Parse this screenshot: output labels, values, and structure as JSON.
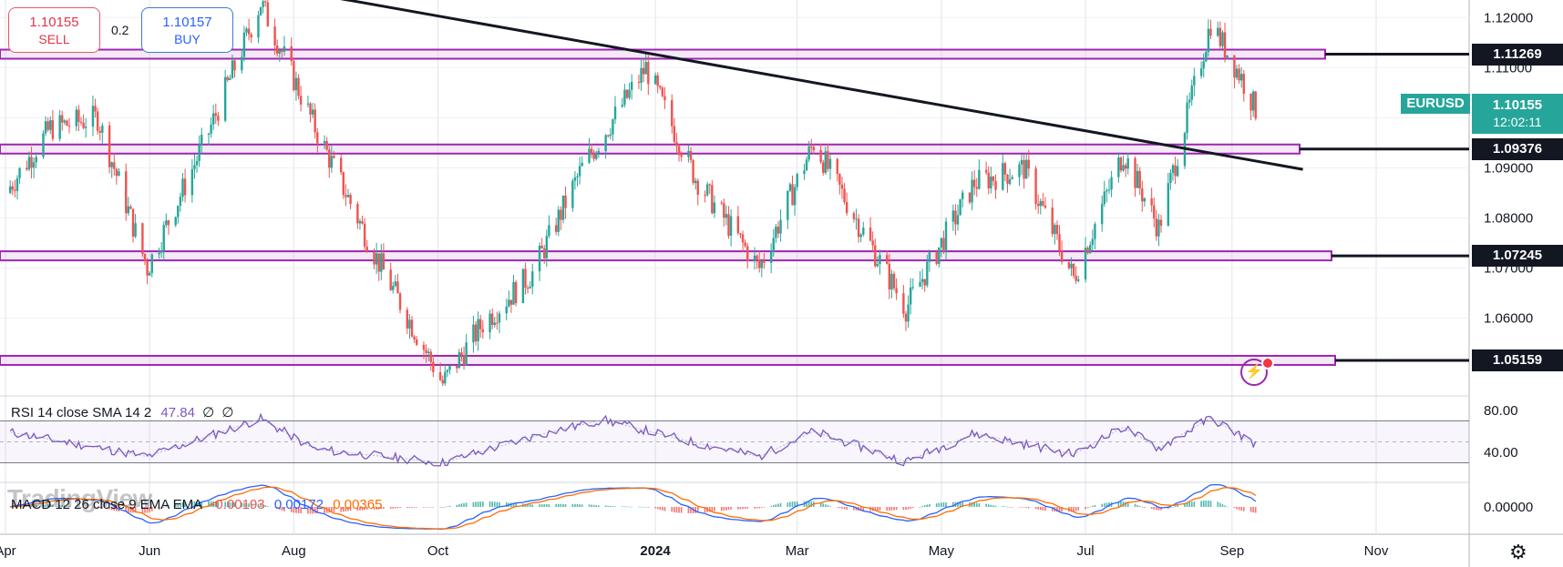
{
  "trade": {
    "sell_price": "1.10155",
    "sell_label": "SELL",
    "spread": "0.2",
    "buy_price": "1.10157",
    "buy_label": "BUY"
  },
  "symbol": "EURUSD",
  "last_price": "1.10155",
  "countdown": "12:02:11",
  "levels": [
    {
      "value": 1.11269,
      "label": "1.11269"
    },
    {
      "value": 1.09376,
      "label": "1.09376"
    },
    {
      "value": 1.07245,
      "label": "1.07245"
    },
    {
      "value": 1.05159,
      "label": "1.05159"
    }
  ],
  "rsi_legend": {
    "name": "RSI 14 close SMA 14 2",
    "value": "47.84",
    "extra1": "∅",
    "extra2": "∅"
  },
  "macd_legend": {
    "name": "MACD 12 26 close 9 EMA EMA",
    "hist": "-0.00193",
    "macd": "0.00172",
    "signal": "0.00365"
  },
  "watermark": "TradingView",
  "colors": {
    "up": "#26a69a",
    "down": "#ef5350",
    "zone": "#9c27b0",
    "rsi": "#7e57c2",
    "macd": "#2962ff",
    "signal": "#ff6d00",
    "badge": "#26a69a"
  },
  "chart_data": {
    "type": "candlestick",
    "symbol": "EURUSD",
    "x_tick_labels": [
      "Apr",
      "Jun",
      "Aug",
      "Oct",
      "2024",
      "Mar",
      "May",
      "Jul",
      "Sep",
      "Nov"
    ],
    "price_tick_labels": [
      "1.12000",
      "1.11000",
      "1.10000",
      "1.09000",
      "1.08000",
      "1.07000",
      "1.06000"
    ],
    "price_range": [
      1.0445,
      1.1235
    ],
    "close_path": [
      {
        "date": "2023-04-01",
        "price": 1.085
      },
      {
        "date": "2023-04-20",
        "price": 1.098
      },
      {
        "date": "2023-05-10",
        "price": 1.1
      },
      {
        "date": "2023-05-31",
        "price": 1.07
      },
      {
        "date": "2023-06-25",
        "price": 1.096
      },
      {
        "date": "2023-07-18",
        "price": 1.123
      },
      {
        "date": "2023-08-10",
        "price": 1.098
      },
      {
        "date": "2023-09-05",
        "price": 1.072
      },
      {
        "date": "2023-10-03",
        "price": 1.047
      },
      {
        "date": "2023-10-20",
        "price": 1.059
      },
      {
        "date": "2023-11-10",
        "price": 1.069
      },
      {
        "date": "2023-12-01",
        "price": 1.09
      },
      {
        "date": "2023-12-28",
        "price": 1.11
      },
      {
        "date": "2024-01-18",
        "price": 1.088
      },
      {
        "date": "2024-02-14",
        "price": 1.07
      },
      {
        "date": "2024-03-08",
        "price": 1.095
      },
      {
        "date": "2024-04-16",
        "price": 1.062
      },
      {
        "date": "2024-05-15",
        "price": 1.087
      },
      {
        "date": "2024-06-05",
        "price": 1.09
      },
      {
        "date": "2024-06-26",
        "price": 1.068
      },
      {
        "date": "2024-07-17",
        "price": 1.093
      },
      {
        "date": "2024-08-01",
        "price": 1.078
      },
      {
        "date": "2024-08-23",
        "price": 1.119
      },
      {
        "date": "2024-09-05",
        "price": 1.108
      },
      {
        "date": "2024-09-11",
        "price": 1.1016
      }
    ],
    "trendline": [
      {
        "date": "2023-07-25",
        "price": 1.126
      },
      {
        "date": "2024-10-01",
        "price": 1.0897
      }
    ],
    "support_resistance_zones": [
      1.11269,
      1.09376,
      1.07245,
      1.05159
    ],
    "rsi": {
      "label": "RSI 14 close SMA 14 2",
      "current": 47.84,
      "tick_labels": [
        "80.00",
        "40.00"
      ],
      "bands": [
        70,
        30
      ],
      "path": [
        {
          "date": "2023-04-01",
          "value": 60
        },
        {
          "date": "2023-05-31",
          "value": 36
        },
        {
          "date": "2023-07-18",
          "value": 72
        },
        {
          "date": "2023-08-10",
          "value": 43
        },
        {
          "date": "2023-10-03",
          "value": 30
        },
        {
          "date": "2023-11-15",
          "value": 58
        },
        {
          "date": "2023-12-10",
          "value": 71
        },
        {
          "date": "2024-01-18",
          "value": 49
        },
        {
          "date": "2024-02-14",
          "value": 36
        },
        {
          "date": "2024-03-08",
          "value": 60
        },
        {
          "date": "2024-04-16",
          "value": 31
        },
        {
          "date": "2024-05-15",
          "value": 58
        },
        {
          "date": "2024-06-26",
          "value": 38
        },
        {
          "date": "2024-07-17",
          "value": 64
        },
        {
          "date": "2024-08-01",
          "value": 44
        },
        {
          "date": "2024-08-23",
          "value": 73
        },
        {
          "date": "2024-09-11",
          "value": 48
        }
      ]
    },
    "macd": {
      "label": "MACD 12 26 close 9 EMA EMA",
      "histogram": -0.00193,
      "macd": 0.00172,
      "signal": 0.00365,
      "tick_labels": [
        "0.00000"
      ]
    }
  }
}
